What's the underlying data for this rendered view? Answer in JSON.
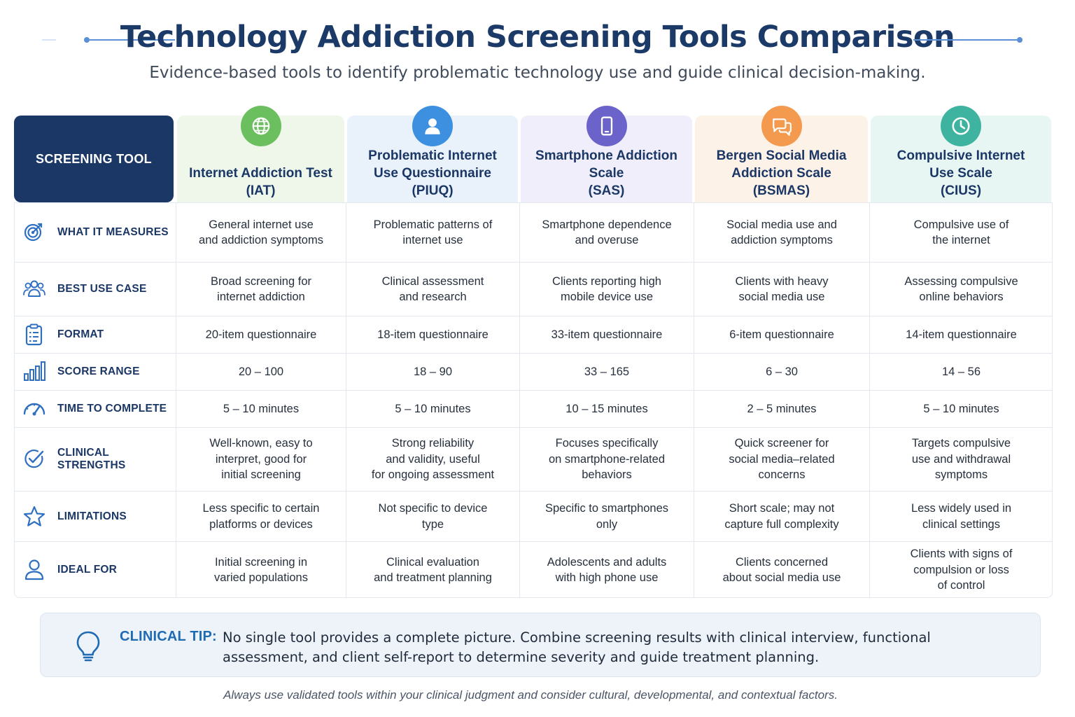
{
  "title": "Technology Addiction Screening Tools Comparison",
  "subtitle": "Evidence-based tools to identify problematic technology use and guide clinical decision-making.",
  "table": {
    "corner_label": "SCREENING TOOL",
    "tools": [
      {
        "name": "Internet Addiction Test",
        "abbr": "(IAT)",
        "icon": "globe-icon",
        "icon_color": "#6cbf5e",
        "tint": "#eef7ea"
      },
      {
        "name": "Problematic Internet Use Questionnaire",
        "abbr": "(PIUQ)",
        "icon": "user-icon",
        "icon_color": "#3d8fe0",
        "tint": "#e9f2fb"
      },
      {
        "name": "Smartphone Addiction Scale",
        "abbr": "(SAS)",
        "icon": "smartphone-icon",
        "icon_color": "#6b63c9",
        "tint": "#efeefa"
      },
      {
        "name": "Bergen Social Media Addiction Scale",
        "abbr": "(BSMAS)",
        "icon": "chat-icon",
        "icon_color": "#f39a4e",
        "tint": "#fdf2e8"
      },
      {
        "name": "Compulsive Internet Use Scale",
        "abbr": "(CIUS)",
        "icon": "clock-icon",
        "icon_color": "#3db3a0",
        "tint": "#e8f6f3"
      }
    ],
    "rows": [
      {
        "label": "WHAT IT MEASURES",
        "icon": "target-icon",
        "cells": [
          [
            "General internet use",
            "and addiction symptoms"
          ],
          [
            "Problematic patterns of",
            "internet use"
          ],
          [
            "Smartphone dependence",
            "and overuse"
          ],
          [
            "Social media use and",
            "addiction symptoms"
          ],
          [
            "Compulsive use of",
            "the internet"
          ]
        ]
      },
      {
        "label": "BEST USE CASE",
        "icon": "people-icon",
        "cells": [
          [
            "Broad screening for",
            "internet addiction"
          ],
          [
            "Clinical assessment",
            "and research"
          ],
          [
            "Clients reporting high",
            "mobile device use"
          ],
          [
            "Clients with heavy",
            "social media use"
          ],
          [
            "Assessing compulsive",
            "online behaviors"
          ]
        ]
      },
      {
        "label": "FORMAT",
        "icon": "clipboard-icon",
        "cells": [
          [
            "20-item questionnaire"
          ],
          [
            "18-item questionnaire"
          ],
          [
            "33-item questionnaire"
          ],
          [
            "6-item questionnaire"
          ],
          [
            "14-item questionnaire"
          ]
        ]
      },
      {
        "label": "SCORE RANGE",
        "icon": "bar-chart-icon",
        "cells": [
          [
            "20 – 100"
          ],
          [
            "18 – 90"
          ],
          [
            "33 – 165"
          ],
          [
            "6 – 30"
          ],
          [
            "14 – 56"
          ]
        ]
      },
      {
        "label": "TIME TO COMPLETE",
        "icon": "gauge-icon",
        "cells": [
          [
            "5 – 10 minutes"
          ],
          [
            "5 – 10 minutes"
          ],
          [
            "10 – 15 minutes"
          ],
          [
            "2 – 5 minutes"
          ],
          [
            "5 – 10 minutes"
          ]
        ]
      },
      {
        "label": "CLINICAL STRENGTHS",
        "icon": "check-circle-icon",
        "cells": [
          [
            "Well-known, easy to",
            "interpret, good for",
            "initial screening"
          ],
          [
            "Strong reliability",
            "and validity, useful",
            "for ongoing assessment"
          ],
          [
            "Focuses specifically",
            "on smartphone-related",
            "behaviors"
          ],
          [
            "Quick screener for",
            "social media–related",
            "concerns"
          ],
          [
            "Targets compulsive",
            "use and withdrawal",
            "symptoms"
          ]
        ]
      },
      {
        "label": "LIMITATIONS",
        "icon": "star-icon",
        "cells": [
          [
            "Less specific to certain",
            "platforms or devices"
          ],
          [
            "Not specific to device",
            "type"
          ],
          [
            "Specific to smartphones",
            "only"
          ],
          [
            "Short scale; may not",
            "capture full complexity"
          ],
          [
            "Less widely used in",
            "clinical settings"
          ]
        ]
      },
      {
        "label": "IDEAL FOR",
        "icon": "person-icon",
        "cells": [
          [
            "Initial screening in",
            "varied populations"
          ],
          [
            "Clinical evaluation",
            "and treatment planning"
          ],
          [
            "Adolescents and adults",
            "with high phone use"
          ],
          [
            "Clients concerned",
            "about social media use"
          ],
          [
            "Clients with signs of",
            "compulsion or loss",
            "of control"
          ]
        ]
      }
    ]
  },
  "tip": {
    "label": "CLINICAL TIP:",
    "icon": "lightbulb-icon",
    "text": "No single tool provides a complete picture. Combine screening results with clinical interview, functional assessment, and client self-report to determine severity and guide treatment planning."
  },
  "footer": "Always use validated tools within your clinical judgment and consider cultural, developmental, and contextual factors."
}
